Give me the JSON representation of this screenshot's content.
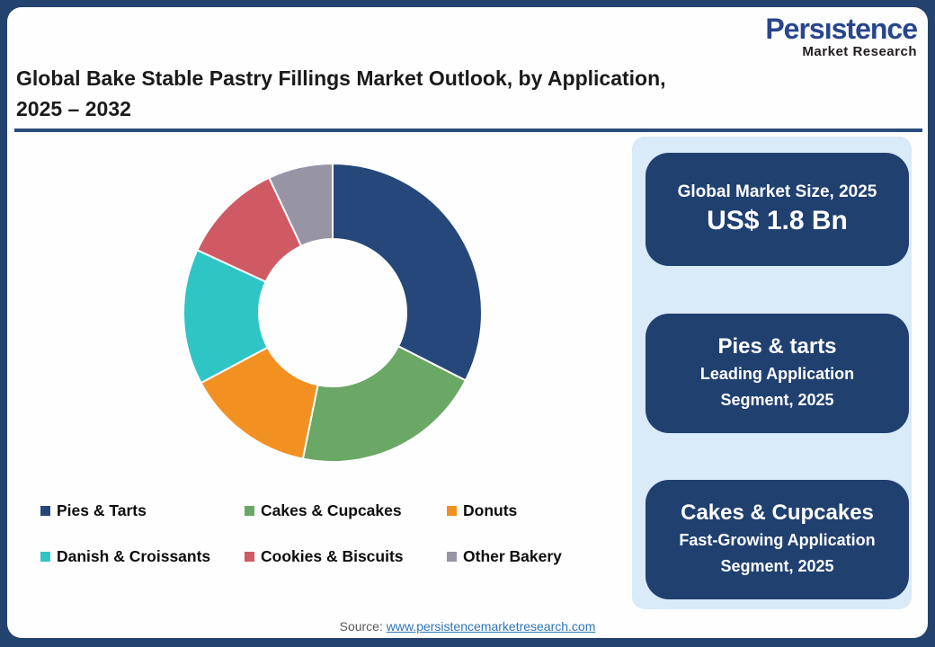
{
  "logo": {
    "brand_pre": "Pers",
    "brand_post": "stence",
    "sub": "Market Research",
    "brand_color": "#28468C",
    "dot_color": "#D92B27"
  },
  "header": {
    "title_line1": "Global Bake Stable Pastry Fillings Market Outlook, by Application,",
    "title_line2": "2025 – 2032"
  },
  "chart_data": {
    "type": "pie",
    "subtype": "donut",
    "title": "Global Bake Stable Pastry Fillings Market Outlook, by Application, 2025 – 2032",
    "start_angle_deg": 0,
    "direction": "clockwise",
    "legend_position": "bottom",
    "value_basis": "percent share estimated from arc angles (no numeric labels shown in figure)",
    "segments": [
      {
        "label": "Pies & Tarts",
        "value": 32.5,
        "color": "#264779"
      },
      {
        "label": "Cakes & Cupcakes",
        "value": 20.7,
        "color": "#6BA765"
      },
      {
        "label": "Donuts",
        "value": 14.0,
        "color": "#F29122"
      },
      {
        "label": "Danish & Croissants",
        "value": 14.7,
        "color": "#2FC5C5"
      },
      {
        "label": "Cookies & Biscuits",
        "value": 11.1,
        "color": "#D05A64"
      },
      {
        "label": "Other Bakery",
        "value": 7.0,
        "color": "#9794A5"
      }
    ]
  },
  "panels": {
    "container_bg": "#D9EAF8",
    "panel_bg": "#204070",
    "items": [
      {
        "line1": "Global Market Size, 2025",
        "line2": "US$ 1.8 Bn"
      },
      {
        "line1": "Pies & tarts",
        "line2": "Leading Application Segment, 2025"
      },
      {
        "line1": "Cakes & Cupcakes",
        "line2": "Fast-Growing Application Segment, 2025"
      }
    ]
  },
  "footer": {
    "source_label": "Source:",
    "source_link": "www.persistencemarketresearch.com",
    "link_color": "#2E75B6"
  },
  "colors": {
    "frame": "#24426E",
    "card": "#FEFEFE",
    "divider": "#2B4C7E",
    "title_text": "#1A1A1A"
  }
}
